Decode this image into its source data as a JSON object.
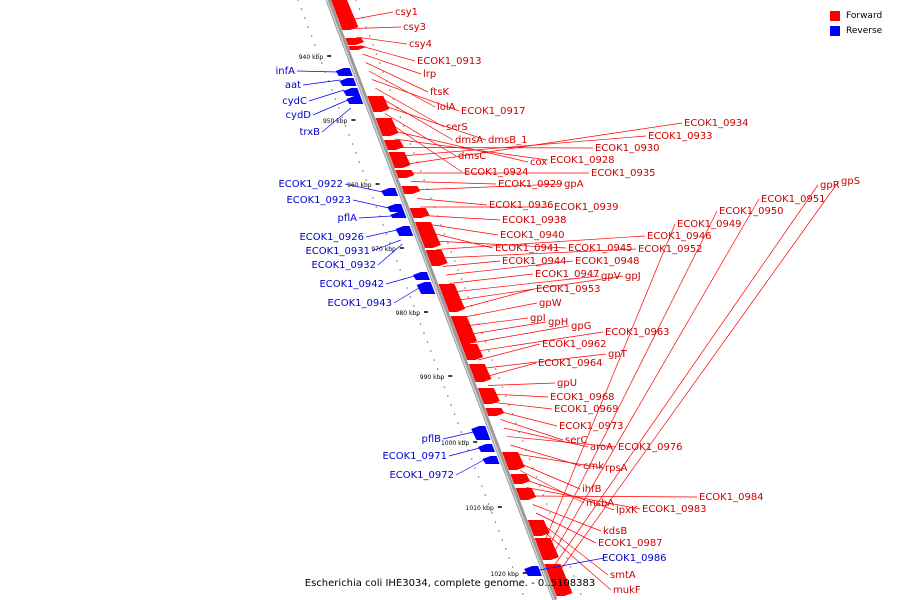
{
  "caption": "Escherichia coli IHE3034, complete genome. - 0..5108383",
  "legend": [
    {
      "label": "Forward",
      "color": "#ff0000"
    },
    {
      "label": "Reverse",
      "color": "#0000ff"
    }
  ],
  "colors": {
    "forward": "#ff0000",
    "reverse": "#0000ff",
    "backbone": "#999999"
  },
  "ticks": [
    "940 kbp",
    "950 kbp",
    "960 kbp",
    "970 kbp",
    "980 kbp",
    "990 kbp",
    "1000 kbp",
    "1010 kbp",
    "1020 kbp"
  ],
  "forward_labels": [
    "csy1",
    "csy3",
    "csy4",
    "ECOK1_0913",
    "lrp",
    "ftsK",
    "lolA",
    "ECOK1_0917",
    "serS",
    "dmsA",
    "dmsB_1",
    "dmsC",
    "ECOK1_0924",
    "cox",
    "ECOK1_0928",
    "ECOK1_0930",
    "ECOK1_0933",
    "ECOK1_0934",
    "ECOK1_0935",
    "ECOK1_0929",
    "gpA",
    "ECOK1_0936",
    "ECOK1_0939",
    "ECOK1_0938",
    "ECOK1_0940",
    "ECOK1_0941",
    "ECOK1_0945",
    "ECOK1_0946",
    "ECOK1_0952",
    "ECOK1_0944",
    "ECOK1_0948",
    "ECOK1_0947",
    "gpV",
    "gpJ",
    "ECOK1_0953",
    "gpW",
    "gpI",
    "gpH",
    "gpG",
    "ECOK1_0963",
    "ECOK1_0962",
    "gpT",
    "ECOK1_0964",
    "gpU",
    "ECOK1_0968",
    "ECOK1_0969",
    "ECOK1_0973",
    "serC",
    "aroA",
    "ECOK1_0976",
    "cmk",
    "rpsA",
    "ihfB",
    "msbA",
    "lpxK",
    "ECOK1_0983",
    "ECOK1_0984",
    "kdsB",
    "ECOK1_0987",
    "smtA",
    "mukF",
    "ECOK1_0949",
    "ECOK1_0950",
    "ECOK1_0951",
    "gpR",
    "gpS"
  ],
  "reverse_labels": [
    "infA",
    "aat",
    "cydC",
    "cydD",
    "trxB",
    "ECOK1_0922",
    "ECOK1_0923",
    "pflA",
    "ECOK1_0926",
    "ECOK1_0931",
    "ECOK1_0932",
    "ECOK1_0942",
    "ECOK1_0943",
    "pflB",
    "ECOK1_0971",
    "ECOK1_0972",
    "ECOK1_0986"
  ]
}
